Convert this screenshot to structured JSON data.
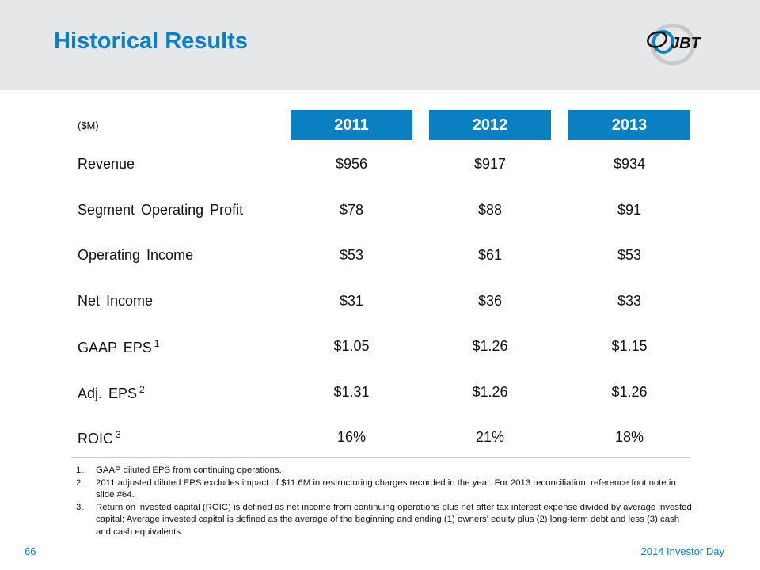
{
  "slide": {
    "title": "Historical Results",
    "logo_text": "JBT",
    "page_number": "66",
    "footer_text": "2014 Investor Day"
  },
  "colors": {
    "brand_blue": "#0a7fc2",
    "header_bg": "#e6e7e9"
  },
  "table": {
    "unit_label": "($M)",
    "years": [
      "2011",
      "2012",
      "2013"
    ],
    "rows": [
      {
        "label": "Revenue",
        "sup": "",
        "values": [
          "$956",
          "$917",
          "$934"
        ]
      },
      {
        "label": "Segment Operating Profit",
        "sup": "",
        "values": [
          "$78",
          "$88",
          "$91"
        ]
      },
      {
        "label": "Operating Income",
        "sup": "",
        "values": [
          "$53",
          "$61",
          "$53"
        ]
      },
      {
        "label": "Net Income",
        "sup": "",
        "values": [
          "$31",
          "$36",
          "$33"
        ]
      },
      {
        "label": "GAAP EPS",
        "sup": "1",
        "values": [
          "$1.05",
          "$1.26",
          "$1.15"
        ]
      },
      {
        "label": "Adj. EPS",
        "sup": "2",
        "values": [
          "$1.31",
          "$1.26",
          "$1.26"
        ]
      },
      {
        "label": "ROIC",
        "sup": "3",
        "values": [
          "16%",
          "21%",
          "18%"
        ]
      }
    ]
  },
  "footnotes": [
    {
      "num": "1.",
      "text": "GAAP diluted EPS from continuing operations."
    },
    {
      "num": "2.",
      "text": "2011 adjusted diluted EPS excludes impact of $11.6M in restructuring charges recorded in the year.  For 2013 reconciliation, reference foot note in slide #64."
    },
    {
      "num": "3.",
      "text": "Return on invested capital (ROIC) is defined as net income from continuing operations plus net after tax interest expense divided by average invested capital; Average invested capital is defined as the average of the beginning and ending (1) owners' equity plus (2) long-term debt and less (3) cash and cash equivalents."
    }
  ]
}
